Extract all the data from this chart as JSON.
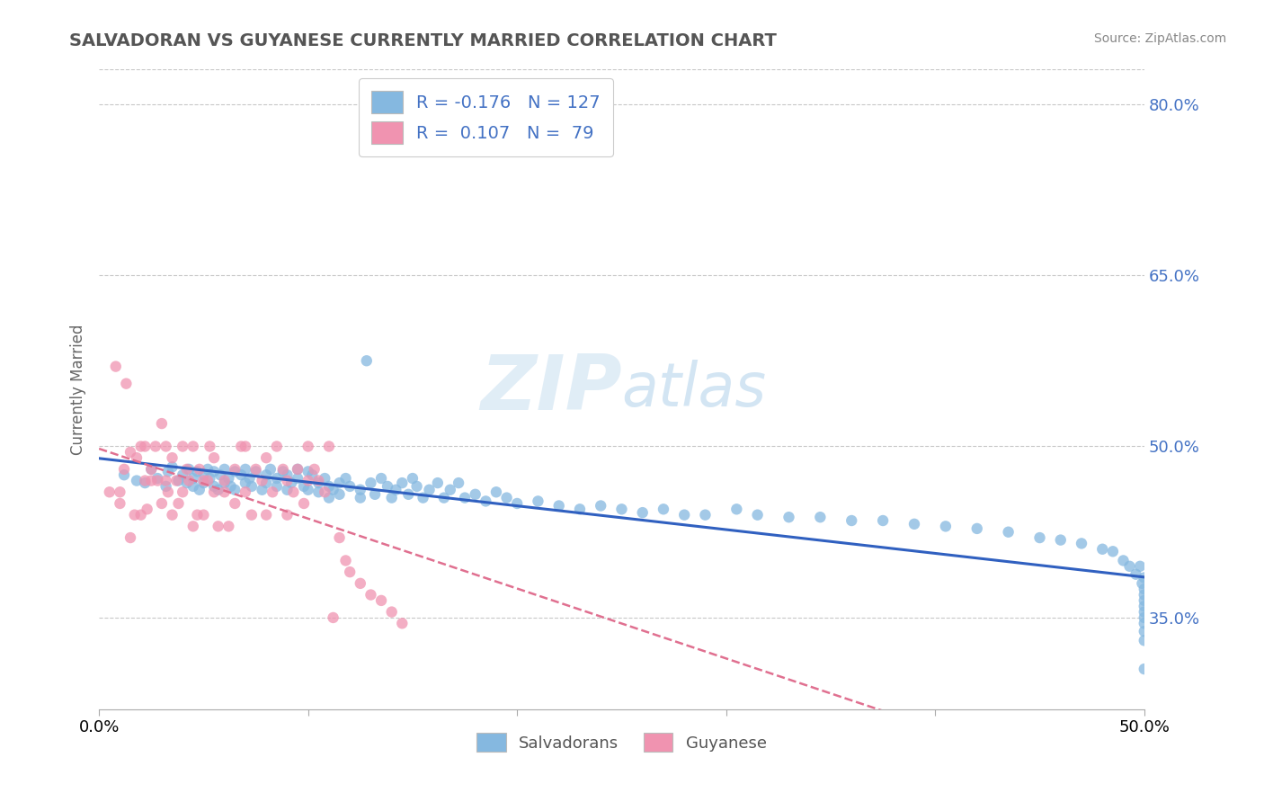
{
  "title": "SALVADORAN VS GUYANESE CURRENTLY MARRIED CORRELATION CHART",
  "source": "Source: ZipAtlas.com",
  "ylabel": "Currently Married",
  "xlim": [
    0.0,
    0.5
  ],
  "ylim": [
    0.27,
    0.83
  ],
  "xticks": [
    0.0,
    0.1,
    0.2,
    0.3,
    0.4,
    0.5
  ],
  "xtick_labels": [
    "0.0%",
    "",
    "",
    "",
    "",
    "50.0%"
  ],
  "ytick_labels_right": [
    "35.0%",
    "50.0%",
    "65.0%",
    "80.0%"
  ],
  "ytick_vals_right": [
    0.35,
    0.5,
    0.65,
    0.8
  ],
  "watermark": "ZIPatlas",
  "salvadoran_color": "#85b8e0",
  "guyanese_color": "#f093b0",
  "trend_salvadoran_color": "#3060c0",
  "trend_guyanese_color": "#e07090",
  "background_color": "#ffffff",
  "grid_color": "#c8c8c8",
  "R_salvadoran": -0.176,
  "N_salvadoran": 127,
  "R_guyanese": 0.107,
  "N_guyanese": 79,
  "salvadoran_x": [
    0.012,
    0.018,
    0.022,
    0.025,
    0.028,
    0.032,
    0.033,
    0.035,
    0.038,
    0.04,
    0.042,
    0.043,
    0.045,
    0.045,
    0.047,
    0.048,
    0.05,
    0.05,
    0.052,
    0.053,
    0.055,
    0.055,
    0.057,
    0.058,
    0.06,
    0.06,
    0.062,
    0.063,
    0.065,
    0.065,
    0.068,
    0.07,
    0.07,
    0.072,
    0.073,
    0.075,
    0.078,
    0.08,
    0.08,
    0.082,
    0.085,
    0.085,
    0.088,
    0.09,
    0.09,
    0.092,
    0.095,
    0.095,
    0.098,
    0.1,
    0.1,
    0.102,
    0.105,
    0.105,
    0.108,
    0.11,
    0.11,
    0.112,
    0.115,
    0.115,
    0.118,
    0.12,
    0.125,
    0.125,
    0.128,
    0.13,
    0.132,
    0.135,
    0.138,
    0.14,
    0.142,
    0.145,
    0.148,
    0.15,
    0.152,
    0.155,
    0.158,
    0.162,
    0.165,
    0.168,
    0.172,
    0.175,
    0.18,
    0.185,
    0.19,
    0.195,
    0.2,
    0.21,
    0.22,
    0.23,
    0.24,
    0.25,
    0.26,
    0.27,
    0.28,
    0.29,
    0.305,
    0.315,
    0.33,
    0.345,
    0.36,
    0.375,
    0.39,
    0.405,
    0.42,
    0.435,
    0.45,
    0.46,
    0.47,
    0.48,
    0.485,
    0.49,
    0.493,
    0.496,
    0.498,
    0.499,
    0.5,
    0.5,
    0.5,
    0.5,
    0.5,
    0.5,
    0.5,
    0.5,
    0.5,
    0.5,
    0.5
  ],
  "salvadoran_y": [
    0.475,
    0.47,
    0.468,
    0.48,
    0.472,
    0.465,
    0.478,
    0.482,
    0.47,
    0.475,
    0.468,
    0.48,
    0.472,
    0.465,
    0.478,
    0.462,
    0.475,
    0.468,
    0.48,
    0.472,
    0.465,
    0.478,
    0.462,
    0.475,
    0.468,
    0.48,
    0.472,
    0.465,
    0.478,
    0.462,
    0.475,
    0.468,
    0.48,
    0.472,
    0.465,
    0.478,
    0.462,
    0.475,
    0.468,
    0.48,
    0.472,
    0.465,
    0.478,
    0.462,
    0.475,
    0.468,
    0.48,
    0.472,
    0.465,
    0.478,
    0.462,
    0.475,
    0.468,
    0.46,
    0.472,
    0.465,
    0.455,
    0.462,
    0.468,
    0.458,
    0.472,
    0.465,
    0.455,
    0.462,
    0.575,
    0.468,
    0.458,
    0.472,
    0.465,
    0.455,
    0.462,
    0.468,
    0.458,
    0.472,
    0.465,
    0.455,
    0.462,
    0.468,
    0.455,
    0.462,
    0.468,
    0.455,
    0.458,
    0.452,
    0.46,
    0.455,
    0.45,
    0.452,
    0.448,
    0.445,
    0.448,
    0.445,
    0.442,
    0.445,
    0.44,
    0.44,
    0.445,
    0.44,
    0.438,
    0.438,
    0.435,
    0.435,
    0.432,
    0.43,
    0.428,
    0.425,
    0.42,
    0.418,
    0.415,
    0.41,
    0.408,
    0.4,
    0.395,
    0.388,
    0.395,
    0.38,
    0.385,
    0.375,
    0.37,
    0.365,
    0.36,
    0.355,
    0.35,
    0.345,
    0.338,
    0.33,
    0.305
  ],
  "guyanese_x": [
    0.005,
    0.008,
    0.01,
    0.01,
    0.012,
    0.013,
    0.015,
    0.015,
    0.017,
    0.018,
    0.02,
    0.02,
    0.022,
    0.022,
    0.023,
    0.025,
    0.025,
    0.027,
    0.028,
    0.03,
    0.03,
    0.032,
    0.032,
    0.033,
    0.035,
    0.035,
    0.037,
    0.038,
    0.04,
    0.04,
    0.042,
    0.043,
    0.045,
    0.045,
    0.047,
    0.048,
    0.05,
    0.05,
    0.052,
    0.053,
    0.055,
    0.055,
    0.057,
    0.06,
    0.06,
    0.062,
    0.065,
    0.065,
    0.068,
    0.07,
    0.07,
    0.073,
    0.075,
    0.078,
    0.08,
    0.08,
    0.083,
    0.085,
    0.088,
    0.09,
    0.09,
    0.093,
    0.095,
    0.098,
    0.1,
    0.1,
    0.103,
    0.105,
    0.108,
    0.11,
    0.112,
    0.115,
    0.118,
    0.12,
    0.125,
    0.13,
    0.135,
    0.14,
    0.145
  ],
  "guyanese_y": [
    0.46,
    0.57,
    0.46,
    0.45,
    0.48,
    0.555,
    0.495,
    0.42,
    0.44,
    0.49,
    0.5,
    0.44,
    0.47,
    0.5,
    0.445,
    0.47,
    0.48,
    0.5,
    0.47,
    0.52,
    0.45,
    0.47,
    0.5,
    0.46,
    0.49,
    0.44,
    0.47,
    0.45,
    0.5,
    0.46,
    0.48,
    0.47,
    0.43,
    0.5,
    0.44,
    0.48,
    0.47,
    0.44,
    0.47,
    0.5,
    0.46,
    0.49,
    0.43,
    0.47,
    0.46,
    0.43,
    0.48,
    0.45,
    0.5,
    0.46,
    0.5,
    0.44,
    0.48,
    0.47,
    0.44,
    0.49,
    0.46,
    0.5,
    0.48,
    0.47,
    0.44,
    0.46,
    0.48,
    0.45,
    0.47,
    0.5,
    0.48,
    0.47,
    0.46,
    0.5,
    0.35,
    0.42,
    0.4,
    0.39,
    0.38,
    0.37,
    0.365,
    0.355,
    0.345
  ]
}
